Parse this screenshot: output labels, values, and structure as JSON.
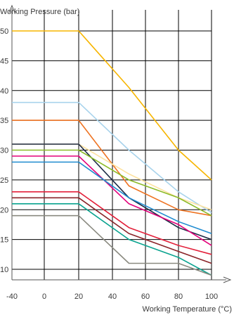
{
  "chart_data": {
    "type": "line",
    "ylabel": "Working Pressure (bar)",
    "xlabel": "Working Temperature (°C)",
    "xlim": [
      -40,
      100
    ],
    "ylim": [
      8,
      51
    ],
    "grid": true,
    "x_ticks": [
      -40,
      0,
      20,
      40,
      60,
      80,
      100
    ],
    "x_tick_labels": [
      "-40",
      "0",
      "20",
      "40",
      "60",
      "80",
      "100"
    ],
    "y_ticks": [
      10,
      15,
      20,
      25,
      30,
      35,
      40,
      45,
      50
    ],
    "y_tick_labels": [
      "10",
      "15",
      "20",
      "25",
      "30",
      "35",
      "40",
      "45",
      "50"
    ],
    "series": [
      {
        "color": "#f7b500",
        "points": [
          [
            -40,
            50
          ],
          [
            20,
            50
          ],
          [
            50,
            40.5
          ],
          [
            80,
            30
          ],
          [
            100,
            25
          ]
        ]
      },
      {
        "color": "#a8d3ec",
        "points": [
          [
            -40,
            38
          ],
          [
            20,
            38
          ],
          [
            50,
            30
          ],
          [
            80,
            23
          ],
          [
            100,
            19.5
          ]
        ]
      },
      {
        "color": "#ee7322",
        "points": [
          [
            -40,
            35
          ],
          [
            20,
            35
          ],
          [
            50,
            24
          ],
          [
            80,
            20
          ],
          [
            100,
            19
          ]
        ]
      },
      {
        "color": "#fde2a0",
        "points": [
          [
            -40,
            31
          ],
          [
            20,
            31
          ],
          [
            50,
            26
          ],
          [
            80,
            22
          ],
          [
            100,
            20
          ]
        ]
      },
      {
        "color": "#1c2a45",
        "points": [
          [
            -40,
            31
          ],
          [
            20,
            31
          ],
          [
            50,
            22
          ],
          [
            80,
            17
          ],
          [
            100,
            15
          ]
        ]
      },
      {
        "color": "#8cbb28",
        "points": [
          [
            -40,
            30
          ],
          [
            20,
            30
          ],
          [
            50,
            25
          ],
          [
            80,
            22
          ],
          [
            100,
            19
          ]
        ]
      },
      {
        "color": "#e3007a",
        "points": [
          [
            -40,
            29
          ],
          [
            20,
            29
          ],
          [
            50,
            21
          ],
          [
            80,
            17.5
          ],
          [
            100,
            14
          ]
        ]
      },
      {
        "color": "#1f8bd0",
        "points": [
          [
            -40,
            28
          ],
          [
            20,
            28
          ],
          [
            50,
            22
          ],
          [
            80,
            18
          ],
          [
            100,
            16
          ]
        ]
      },
      {
        "color": "#e3203a",
        "points": [
          [
            -40,
            23
          ],
          [
            20,
            23
          ],
          [
            50,
            17
          ],
          [
            80,
            14
          ],
          [
            100,
            12.5
          ]
        ]
      },
      {
        "color": "#8a2328",
        "points": [
          [
            -40,
            22
          ],
          [
            20,
            22
          ],
          [
            50,
            16
          ],
          [
            80,
            13
          ],
          [
            100,
            11
          ]
        ]
      },
      {
        "color": "#0aa38f",
        "points": [
          [
            -40,
            21
          ],
          [
            20,
            21
          ],
          [
            50,
            15
          ],
          [
            80,
            12
          ],
          [
            100,
            9
          ]
        ]
      },
      {
        "color": "#8a8a80",
        "points": [
          [
            -40,
            19
          ],
          [
            20,
            19
          ],
          [
            50,
            11
          ],
          [
            80,
            11
          ],
          [
            100,
            9
          ]
        ]
      }
    ]
  }
}
